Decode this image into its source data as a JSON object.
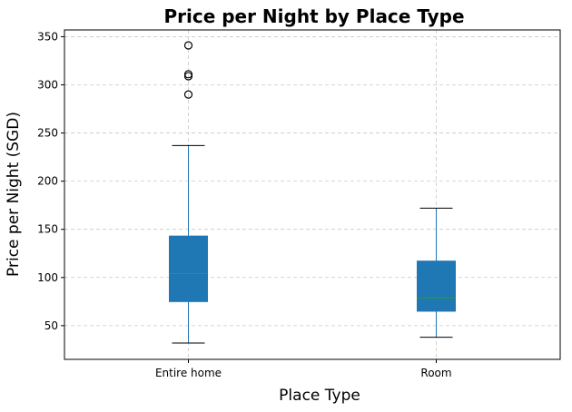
{
  "chart_data": {
    "type": "box",
    "title": "Price per Night by Place Type",
    "xlabel": "Place Type",
    "ylabel": "Price per Night (SGD)",
    "ylim": [
      15,
      357
    ],
    "yticks": [
      50,
      100,
      150,
      200,
      250,
      300,
      350
    ],
    "grid": true,
    "categories": [
      "Entire home",
      "Room"
    ],
    "boxes": [
      {
        "category": "Entire home",
        "whisker_low": 32,
        "q1": 75,
        "median": 104,
        "q3": 143,
        "whisker_high": 237,
        "outliers": [
          290,
          309,
          311,
          341
        ]
      },
      {
        "category": "Room",
        "whisker_low": 38,
        "q1": 65,
        "median": 79,
        "q3": 117,
        "whisker_high": 172,
        "outliers": []
      }
    ],
    "colors": {
      "box_fill": "#1f77b4",
      "box_edge": "#1f77b4",
      "median": "#2ca02c",
      "whisker": "#1f77b4",
      "cap": "#000000",
      "grid": "#c8c8c8"
    }
  }
}
